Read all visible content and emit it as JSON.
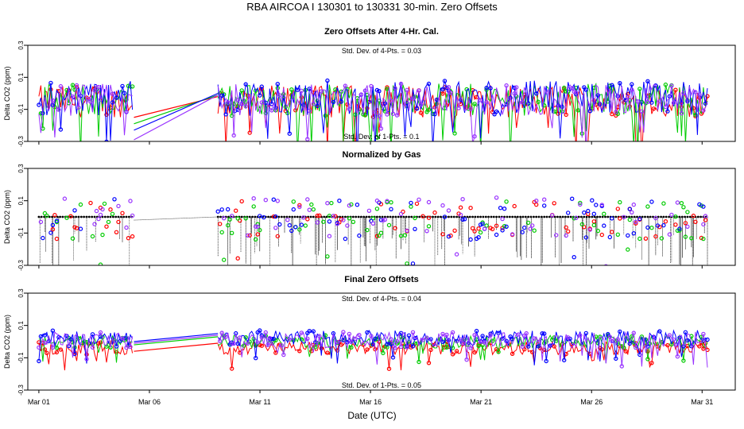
{
  "figure": {
    "title": "RBA   AIRCOA I   130301 to 130331   30-min. Zero Offsets",
    "xlabel": "Date (UTC)",
    "xticks": [
      "Mar 01",
      "Mar 06",
      "Mar 11",
      "Mar 16",
      "Mar 21",
      "Mar 26",
      "Mar 31"
    ],
    "colors": {
      "series1": "#ff0000",
      "series2": "#00cc00",
      "series3": "#0000ff",
      "series4": "#9933ff",
      "normalized": "#000000"
    }
  },
  "chart_data": [
    {
      "type": "line",
      "title": "Zero Offsets After 4-Hr. Cal.",
      "ylabel": "Delta CO2 (ppm)",
      "ylim": [
        -0.3,
        0.3
      ],
      "yticks": [
        "-0.3",
        "-0.1",
        "0.1",
        "0.3"
      ],
      "xlim": [
        0.5,
        32.5
      ],
      "x_unit": "day of March 2013 (UTC)",
      "annotations": [
        "Std. Dev. of 4-Pts. =  0.03",
        "Std. Dev. of 1-Pts. =  0.1"
      ],
      "series": [
        {
          "color": "#ff0000",
          "data_gap": [
            5.3,
            9.1
          ],
          "mean": -0.05,
          "spread": 0.1
        },
        {
          "color": "#00cc00",
          "data_gap": [
            5.3,
            9.1
          ],
          "mean": -0.04,
          "spread": 0.1
        },
        {
          "color": "#0000ff",
          "data_gap": [
            5.3,
            9.1
          ],
          "mean": -0.03,
          "spread": 0.11
        },
        {
          "color": "#9933ff",
          "data_gap": [
            5.3,
            9.1
          ],
          "mean": -0.04,
          "spread": 0.1
        }
      ]
    },
    {
      "type": "scatter",
      "title": "Normalized by Gas",
      "ylabel": "Delta CO2 (ppm)",
      "ylim": [
        -0.3,
        0.3
      ],
      "yticks": [
        "-0.3",
        "-0.1",
        "0.1",
        "0.3"
      ],
      "xlim": [
        0.5,
        32.5
      ],
      "x_unit": "day of March 2013 (UTC)",
      "annotations": [],
      "normalized_level": 0.0,
      "series": [
        {
          "color": "#ff0000",
          "data_gap": [
            5.3,
            9.1
          ],
          "mean": -0.02,
          "spread": 0.12
        },
        {
          "color": "#00cc00",
          "data_gap": [
            5.3,
            9.1
          ],
          "mean": -0.02,
          "spread": 0.12
        },
        {
          "color": "#0000ff",
          "data_gap": [
            5.3,
            9.1
          ],
          "mean": -0.01,
          "spread": 0.13
        },
        {
          "color": "#9933ff",
          "data_gap": [
            5.3,
            9.1
          ],
          "mean": 0.0,
          "spread": 0.12
        }
      ]
    },
    {
      "type": "line",
      "title": "Final Zero Offsets",
      "ylabel": "Delta CO2 (ppm)",
      "ylim": [
        -0.3,
        0.3
      ],
      "yticks": [
        "-0.3",
        "-0.1",
        "0.1",
        "0.3"
      ],
      "xlim": [
        0.5,
        32.5
      ],
      "x_unit": "day of March 2013 (UTC)",
      "annotations": [
        "Std. Dev. of 4-Pts. =  0.04",
        "Std. Dev. of 1-Pts. =  0.05"
      ],
      "series": [
        {
          "color": "#ff0000",
          "data_gap": [
            5.3,
            9.1
          ],
          "mean": -0.04,
          "spread": 0.04
        },
        {
          "color": "#00cc00",
          "data_gap": [
            5.3,
            9.1
          ],
          "mean": 0.0,
          "spread": 0.04
        },
        {
          "color": "#0000ff",
          "data_gap": [
            5.3,
            9.1
          ],
          "mean": 0.02,
          "spread": 0.05
        },
        {
          "color": "#9933ff",
          "data_gap": [
            5.3,
            9.1
          ],
          "mean": 0.01,
          "spread": 0.05
        }
      ]
    }
  ]
}
